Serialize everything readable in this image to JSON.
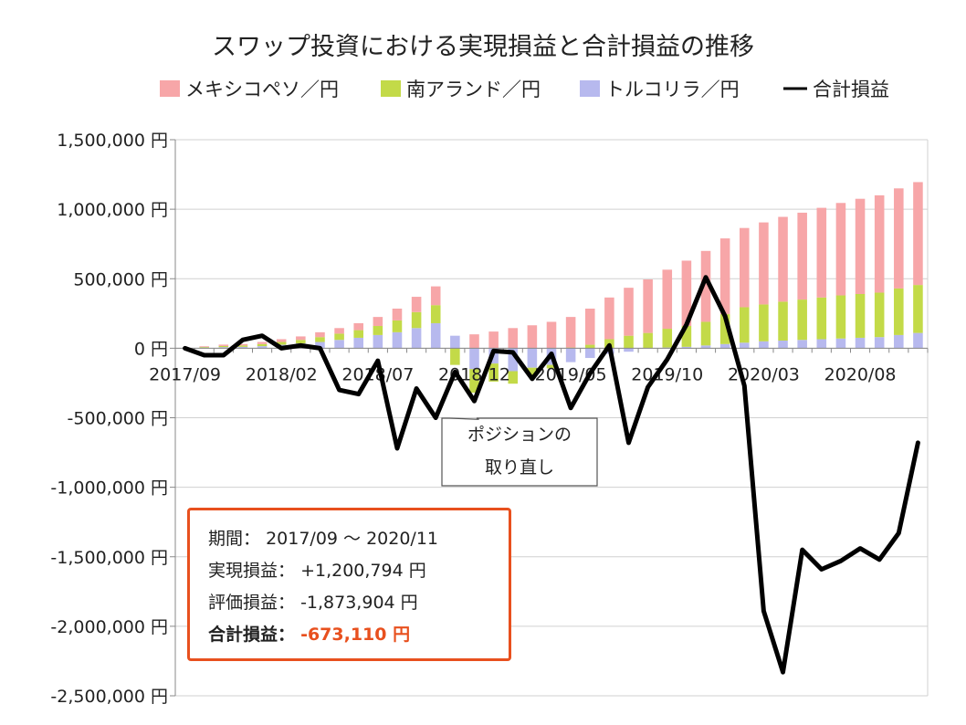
{
  "colors": {
    "mxn": "#f7a6a8",
    "zar": "#c3da48",
    "try": "#b7b9ee",
    "total": "#000000",
    "accent": "#e8501e"
  },
  "chart_data": {
    "type": "bar",
    "title": "スワップ投資における実現損益と合計損益の推移",
    "stacked": true,
    "unit_suffix": " 円",
    "ylim": [
      -2500000,
      1500000
    ],
    "yticks": [
      1500000,
      1000000,
      500000,
      0,
      -500000,
      -1000000,
      -1500000,
      -2000000,
      -2500000
    ],
    "ytick_labels": [
      "1,500,000 円",
      "1,000,000 円",
      "500,000 円",
      "0 円",
      "-500,000 円",
      "-1,000,000 円",
      "-1,500,000 円",
      "-2,000,000 円",
      "-2,500,000 円"
    ],
    "categories": [
      "2017/09",
      "2017/10",
      "2017/11",
      "2017/12",
      "2018/01",
      "2018/02",
      "2018/03",
      "2018/04",
      "2018/05",
      "2018/06",
      "2018/07",
      "2018/08",
      "2018/09",
      "2018/10",
      "2018/11",
      "2018/12",
      "2019/01",
      "2019/02",
      "2019/03",
      "2019/04",
      "2019/05",
      "2019/06",
      "2019/07",
      "2019/08",
      "2019/09",
      "2019/10",
      "2019/11",
      "2019/12",
      "2020/01",
      "2020/02",
      "2020/03",
      "2020/04",
      "2020/05",
      "2020/06",
      "2020/07",
      "2020/08",
      "2020/09",
      "2020/10",
      "2020/11"
    ],
    "xtick_labels": [
      {
        "index": 0,
        "label": "2017/09"
      },
      {
        "index": 5,
        "label": "2018/02"
      },
      {
        "index": 10,
        "label": "2018/07"
      },
      {
        "index": 15,
        "label": "2018/12"
      },
      {
        "index": 20,
        "label": "2019/05"
      },
      {
        "index": 25,
        "label": "2019/10"
      },
      {
        "index": 30,
        "label": "2020/03"
      },
      {
        "index": 35,
        "label": "2020/08"
      }
    ],
    "legend_position": "top",
    "series": [
      {
        "name": "メキシコペソ／円",
        "kind": "bar",
        "color_key": "mxn",
        "values": [
          0,
          5000,
          10000,
          10000,
          15000,
          20000,
          25000,
          35000,
          40000,
          50000,
          65000,
          85000,
          110000,
          135000,
          0,
          100000,
          120000,
          145000,
          165000,
          190000,
          220000,
          260000,
          300000,
          345000,
          385000,
          425000,
          470000,
          510000,
          545000,
          570000,
          590000,
          610000,
          625000,
          645000,
          665000,
          685000,
          700000,
          720000,
          740000
        ]
      },
      {
        "name": "南アランド／円",
        "kind": "bar",
        "color_key": "zar",
        "values": [
          0,
          4000,
          8000,
          10000,
          15000,
          20000,
          25000,
          35000,
          45000,
          55000,
          65000,
          85000,
          115000,
          130000,
          -120000,
          -170000,
          -130000,
          -90000,
          -60000,
          -25000,
          5000,
          25000,
          65000,
          90000,
          110000,
          135000,
          150000,
          170000,
          215000,
          255000,
          265000,
          280000,
          290000,
          300000,
          310000,
          315000,
          320000,
          335000,
          345000
        ]
      },
      {
        "name": "トルコリラ／円",
        "kind": "bar",
        "color_key": "try",
        "values": [
          0,
          5000,
          8000,
          10000,
          15000,
          25000,
          35000,
          45000,
          60000,
          75000,
          95000,
          115000,
          145000,
          180000,
          90000,
          -150000,
          -110000,
          -165000,
          -140000,
          -120000,
          -100000,
          -70000,
          -40000,
          -25000,
          0,
          5000,
          10000,
          20000,
          30000,
          40000,
          50000,
          55000,
          60000,
          65000,
          70000,
          75000,
          80000,
          95000,
          110000
        ]
      },
      {
        "name": "合計損益",
        "kind": "line",
        "color_key": "total",
        "values": [
          0,
          -50000,
          -50000,
          60000,
          90000,
          0,
          20000,
          0,
          -300000,
          -330000,
          -90000,
          -720000,
          -290000,
          -500000,
          -170000,
          -380000,
          -20000,
          -30000,
          -220000,
          -40000,
          -430000,
          -180000,
          20000,
          -680000,
          -280000,
          -80000,
          170000,
          510000,
          230000,
          -270000,
          -1890000,
          -2330000,
          -1450000,
          -1590000,
          -1530000,
          -1440000,
          -1520000,
          -1330000,
          -680000
        ]
      }
    ],
    "annotation": {
      "lines": [
        "ポジションの",
        "取り直し"
      ],
      "target_index": 15
    }
  },
  "summary": {
    "period_label": "期間：",
    "period_value": "2017/09 ～ 2020/11",
    "realized_label": "実現損益：",
    "realized_value": "+1,200,794 円",
    "unrealized_label": "評価損益：",
    "unrealized_value": "-1,873,904 円",
    "total_label": "合計損益：",
    "total_value": "-673,110 円"
  }
}
